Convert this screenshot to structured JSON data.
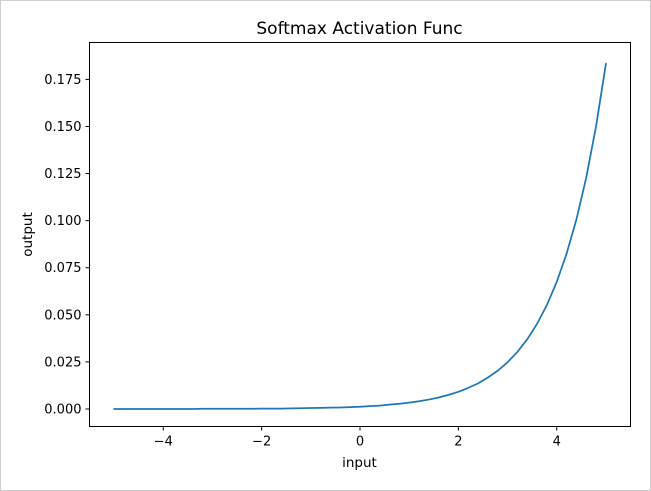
{
  "chart_data": {
    "type": "line",
    "title": "Softmax Activation Func",
    "xlabel": "input",
    "ylabel": "output",
    "xlim": [
      -5.5,
      5.5
    ],
    "ylim": [
      -0.0093,
      0.1946
    ],
    "xticks": [
      -4,
      -2,
      0,
      2,
      4
    ],
    "xtick_labels": [
      "−4",
      "−2",
      "0",
      "2",
      "4"
    ],
    "yticks": [
      0.0,
      0.025,
      0.05,
      0.075,
      0.1,
      0.125,
      0.15,
      0.175
    ],
    "ytick_labels": [
      "0.000",
      "0.025",
      "0.050",
      "0.075",
      "0.100",
      "0.125",
      "0.150",
      "0.175"
    ],
    "grid": false,
    "line_color": "#1f77b4",
    "series": [
      {
        "x": [
          -5.0,
          -4.8,
          -4.6,
          -4.4,
          -4.2,
          -4.0,
          -3.8,
          -3.6,
          -3.4,
          -3.2,
          -3.0,
          -2.8,
          -2.6,
          -2.4,
          -2.2,
          -2.0,
          -1.8,
          -1.6,
          -1.4,
          -1.2,
          -1.0,
          -0.8,
          -0.6,
          -0.4,
          -0.2,
          0.0,
          0.2,
          0.4,
          0.6,
          0.8,
          1.0,
          1.2,
          1.4,
          1.6,
          1.8,
          2.0,
          2.2,
          2.4,
          2.6,
          2.8,
          3.0,
          3.2,
          3.4,
          3.6,
          3.8,
          4.0,
          4.2,
          4.4,
          4.6,
          4.8,
          5.0
        ],
        "values": [
          0.0,
          0.0,
          0.0,
          0.0,
          0.0,
          0.0,
          0.0,
          0.0,
          0.0,
          0.0001,
          0.0001,
          0.0001,
          0.0001,
          0.0001,
          0.0001,
          0.0002,
          0.0002,
          0.0002,
          0.0003,
          0.0004,
          0.0005,
          0.0006,
          0.0007,
          0.0008,
          0.001,
          0.0012,
          0.0015,
          0.0018,
          0.0023,
          0.0028,
          0.0034,
          0.0041,
          0.005,
          0.0061,
          0.0075,
          0.0091,
          0.0112,
          0.0136,
          0.0167,
          0.0203,
          0.0248,
          0.0303,
          0.037,
          0.0452,
          0.0552,
          0.0675,
          0.0824,
          0.1006,
          0.1229,
          0.1501,
          0.1833
        ]
      }
    ]
  }
}
